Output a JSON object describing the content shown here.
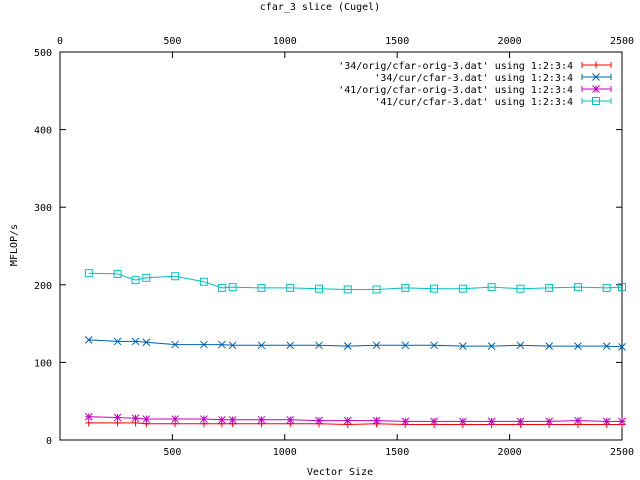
{
  "chart_data": {
    "type": "line",
    "title": "cfar_3 slice (Cugel)",
    "xlabel": "Vector Size",
    "ylabel": "MFLOP/s",
    "xlim": [
      0,
      2500
    ],
    "ylim": [
      0,
      500
    ],
    "xticks": [
      500,
      1000,
      1500,
      2000,
      2500
    ],
    "xticks_labels": [
      "500",
      "1000",
      "1500",
      "2000",
      "2500"
    ],
    "x2ticks": [
      0,
      500,
      1000,
      1500,
      2000,
      2500
    ],
    "x2ticks_labels": [
      "0",
      "500",
      "1000",
      "1500",
      "2000",
      "2500"
    ],
    "yticks": [
      0,
      100,
      200,
      300,
      400,
      500
    ],
    "yticks_labels": [
      "0",
      "100",
      "200",
      "300",
      "400",
      "500"
    ],
    "grid": false,
    "legend_position": "top-right",
    "x": [
      128,
      256,
      336,
      384,
      512,
      640,
      720,
      768,
      896,
      1024,
      1152,
      1280,
      1408,
      1536,
      1664,
      1792,
      1920,
      2048,
      2176,
      2304,
      2432,
      2500
    ],
    "series": [
      {
        "name": "'34/orig/cfar-orig-3.dat' using 1:2:3:4",
        "color": "#ff0000",
        "marker": "plus",
        "values": [
          22,
          22,
          22,
          21,
          21,
          21,
          21,
          21,
          21,
          21,
          21,
          20,
          21,
          20,
          20,
          20,
          20,
          20,
          20,
          20,
          20,
          20
        ]
      },
      {
        "name": "'34/cur/cfar-3.dat' using 1:2:3:4",
        "color": "#0060ad",
        "marker": "x",
        "values": [
          129,
          127,
          127,
          126,
          123,
          123,
          123,
          122,
          122,
          122,
          122,
          121,
          122,
          122,
          122,
          121,
          121,
          122,
          121,
          121,
          121,
          120
        ]
      },
      {
        "name": "'41/orig/cfar-orig-3.dat' using 1:2:3:4",
        "color": "#c000c0",
        "marker": "star",
        "values": [
          30,
          29,
          28,
          27,
          27,
          27,
          26,
          26,
          26,
          26,
          25,
          25,
          25,
          24,
          24,
          24,
          24,
          24,
          24,
          25,
          24,
          24
        ]
      },
      {
        "name": "'41/cur/cfar-3.dat' using 1:2:3:4",
        "color": "#00c0c0",
        "marker": "box",
        "values": [
          215,
          214,
          206,
          209,
          211,
          204,
          196,
          197,
          196,
          196,
          195,
          194,
          194,
          196,
          195,
          195,
          197,
          195,
          196,
          197,
          196,
          197
        ]
      }
    ]
  }
}
